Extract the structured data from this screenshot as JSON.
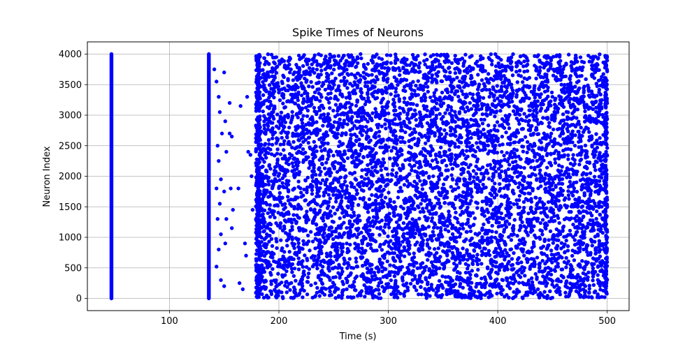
{
  "chart_data": {
    "type": "scatter",
    "title": "Spike Times of Neurons",
    "xlabel": "Time (s)",
    "ylabel": "Neuron Index",
    "xlim": [
      25,
      520
    ],
    "ylim": [
      -200,
      4200
    ],
    "xticks": [
      100,
      200,
      300,
      400,
      500
    ],
    "yticks": [
      0,
      500,
      1000,
      1500,
      2000,
      2500,
      3000,
      3500,
      4000
    ],
    "grid": true,
    "marker_color": "#0000ff",
    "neuron_index_range": [
      0,
      4000
    ],
    "synchronous_volleys": [
      {
        "time": 47,
        "neurons": [
          0,
          4000
        ]
      },
      {
        "time": 136,
        "neurons": [
          0,
          4000
        ]
      }
    ],
    "sparse_spikes": [
      {
        "time": 141,
        "neuron": 3750
      },
      {
        "time": 143,
        "neuron": 3550
      },
      {
        "time": 145,
        "neuron": 3300
      },
      {
        "time": 146,
        "neuron": 3050
      },
      {
        "time": 148,
        "neuron": 2700
      },
      {
        "time": 144,
        "neuron": 2500
      },
      {
        "time": 145,
        "neuron": 2250
      },
      {
        "time": 147,
        "neuron": 1950
      },
      {
        "time": 143,
        "neuron": 1800
      },
      {
        "time": 146,
        "neuron": 1550
      },
      {
        "time": 144,
        "neuron": 1300
      },
      {
        "time": 147,
        "neuron": 1050
      },
      {
        "time": 145,
        "neuron": 800
      },
      {
        "time": 143,
        "neuron": 520
      },
      {
        "time": 147,
        "neuron": 300
      },
      {
        "time": 150,
        "neuron": 3700
      },
      {
        "time": 151,
        "neuron": 2900
      },
      {
        "time": 152,
        "neuron": 2400
      },
      {
        "time": 150,
        "neuron": 1750
      },
      {
        "time": 152,
        "neuron": 1300
      },
      {
        "time": 151,
        "neuron": 900
      },
      {
        "time": 150,
        "neuron": 200
      },
      {
        "time": 155,
        "neuron": 3200
      },
      {
        "time": 155,
        "neuron": 2700
      },
      {
        "time": 157,
        "neuron": 2650
      },
      {
        "time": 156,
        "neuron": 1800
      },
      {
        "time": 158,
        "neuron": 1450
      },
      {
        "time": 157,
        "neuron": 1150
      },
      {
        "time": 163,
        "neuron": 1800
      },
      {
        "time": 165,
        "neuron": 3150
      },
      {
        "time": 164,
        "neuron": 250
      },
      {
        "time": 167,
        "neuron": 150
      },
      {
        "time": 169,
        "neuron": 900
      },
      {
        "time": 171,
        "neuron": 3300
      },
      {
        "time": 172,
        "neuron": 2400
      },
      {
        "time": 170,
        "neuron": 700
      },
      {
        "time": 174,
        "neuron": 2350
      },
      {
        "time": 175,
        "neuron": 2000
      },
      {
        "time": 176,
        "neuron": 1450
      }
    ],
    "dense_region": {
      "time_range": [
        179,
        500
      ],
      "neuron_range": [
        0,
        4000
      ]
    }
  }
}
